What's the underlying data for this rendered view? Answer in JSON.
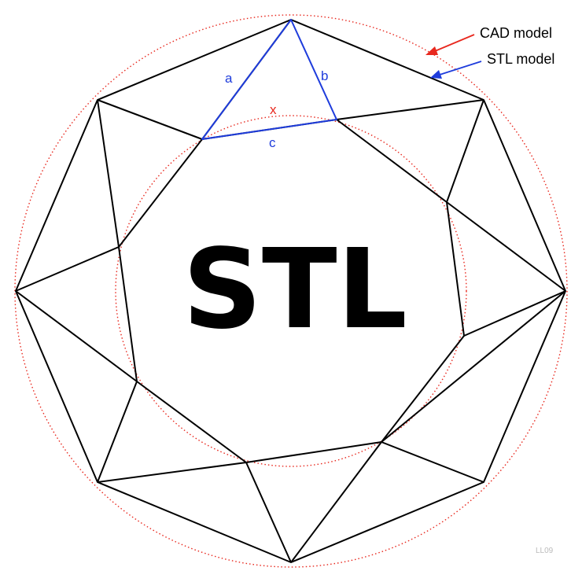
{
  "title": "STL",
  "legend": {
    "cad_label": "CAD model",
    "stl_label": "STL model"
  },
  "edge_labels": {
    "a": "a",
    "b": "b",
    "c": "c",
    "x": "x"
  },
  "watermark": "LL09",
  "colors": {
    "cad": "#e8281e",
    "stl": "#1e3cdc",
    "mesh": "#000000",
    "watermark": "#bbbbbb"
  }
}
